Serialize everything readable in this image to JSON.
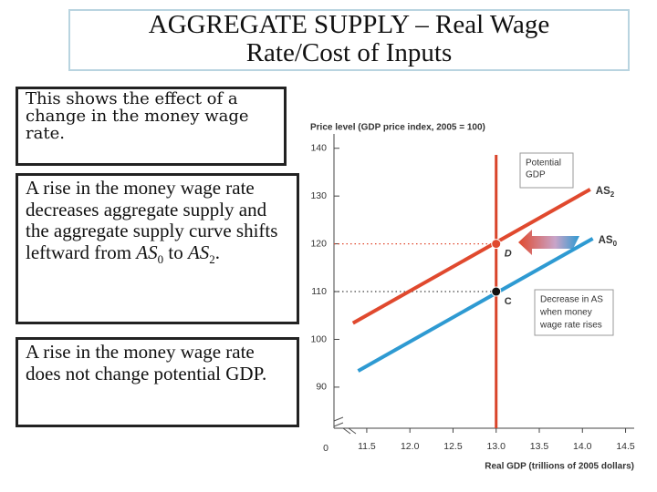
{
  "slide": {
    "title": [
      "AGGREGATE SUPPLY – Real Wage",
      "Rate/Cost of Inputs"
    ],
    "box1": "This shows the effect of a change in the money wage rate.",
    "box2": [
      "A rise in the money wage rate decreases aggregate supply and the aggregate supply curve shifts leftward from ",
      "AS",
      "0",
      " to ",
      "AS",
      "2",
      "."
    ],
    "box3": "A rise in the money wage rate does not change potential GDP."
  },
  "chart_data": {
    "type": "line",
    "ylabel": "Price level (GDP price index, 2005 = 100)",
    "xlabel": "Real GDP (trillions of 2005 dollars)",
    "origin_label": "0",
    "xlim": [
      11.12,
      14.6
    ],
    "ylim": [
      81.4,
      143
    ],
    "xticks": [
      11.5,
      {
        "value": 12,
        "label": "12.0"
      },
      12.5,
      {
        "value": 13,
        "label": "13.0"
      },
      13.5,
      {
        "value": 14,
        "label": "14.0"
      },
      14.5
    ],
    "yticks": [
      90,
      100,
      110,
      120,
      130,
      140
    ],
    "series": [
      {
        "name": "AS",
        "subscript": "2",
        "color": "#e0492e",
        "x": [
          11.34,
          14.09
        ],
        "values": [
          103.4,
          131.4
        ]
      },
      {
        "name": "AS",
        "subscript": "0",
        "color": "#2e9ad2",
        "x": [
          11.4,
          14.12
        ],
        "values": [
          93.4,
          121.1
        ]
      }
    ],
    "vline": {
      "x": 13,
      "color": "#d9442a",
      "label": [
        "Potential",
        "GDP"
      ]
    },
    "points": [
      {
        "label": "D",
        "x": 13,
        "value": 120
      },
      {
        "label": "C",
        "x": 13,
        "value": 110
      }
    ],
    "annotation": [
      "Decrease in AS",
      "when money",
      "wage rate rises"
    ]
  }
}
